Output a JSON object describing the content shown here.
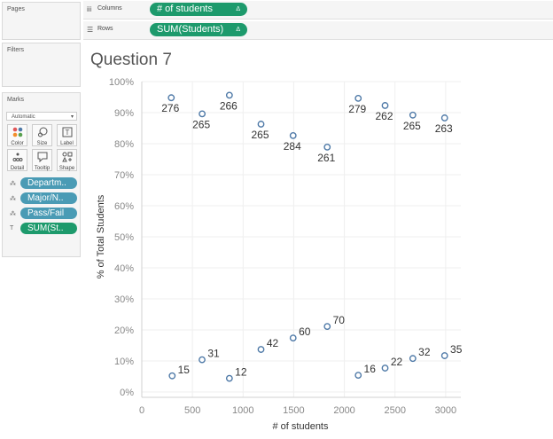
{
  "sidebar": {
    "pages_title": "Pages",
    "filters_title": "Filters",
    "marks_title": "Marks",
    "mark_type": "Automatic",
    "buttons": [
      {
        "label": "Color",
        "icon": "color-icon"
      },
      {
        "label": "Size",
        "icon": "size-icon"
      },
      {
        "label": "Label",
        "icon": "label-icon"
      },
      {
        "label": "Detail",
        "icon": "detail-icon"
      },
      {
        "label": "Tooltip",
        "icon": "tooltip-icon"
      },
      {
        "label": "Shape",
        "icon": "shape-icon"
      }
    ],
    "mark_pills": [
      {
        "label": "Departm..",
        "color": "#4a9bb5",
        "icon": "detail-icon"
      },
      {
        "label": "Major/N..",
        "color": "#4a9bb5",
        "icon": "detail-icon"
      },
      {
        "label": "Pass/Fail",
        "color": "#4a9bb5",
        "icon": "detail-icon"
      },
      {
        "label": "SUM(St..",
        "color": "#1d9a6c",
        "icon": "label-icon"
      }
    ]
  },
  "shelves": {
    "columns_label": "Columns",
    "columns_pill": "# of students",
    "rows_label": "Rows",
    "rows_pill": "SUM(Students)",
    "delta": "Δ"
  },
  "sheet": {
    "title": "Question 7"
  },
  "chart_data": {
    "type": "scatter",
    "xlabel": "# of students",
    "ylabel": "% of Total Students",
    "xlim": [
      0,
      3150
    ],
    "ylim": [
      0,
      100
    ],
    "x_ticks": [
      0,
      500,
      1000,
      1500,
      2000,
      2500,
      3000
    ],
    "y_ticks": [
      0,
      10,
      20,
      30,
      40,
      50,
      60,
      70,
      80,
      90,
      100
    ],
    "y_tick_labels": [
      "0%",
      "10%",
      "20%",
      "30%",
      "40%",
      "50%",
      "60%",
      "70%",
      "80%",
      "90%",
      "100%"
    ],
    "x_tick_labels": [
      "0",
      "500",
      "1000",
      "1500",
      "2000",
      "2500",
      "3000"
    ],
    "grid": true,
    "points": [
      {
        "x": 291,
        "y": 94.8,
        "label": "276"
      },
      {
        "x": 300,
        "y": 5.2,
        "label": "15"
      },
      {
        "x": 596,
        "y": 89.6,
        "label": "265"
      },
      {
        "x": 595,
        "y": 10.4,
        "label": "31"
      },
      {
        "x": 865,
        "y": 95.6,
        "label": "266"
      },
      {
        "x": 865,
        "y": 4.4,
        "label": "12"
      },
      {
        "x": 1177,
        "y": 86.3,
        "label": "265"
      },
      {
        "x": 1177,
        "y": 13.7,
        "label": "42"
      },
      {
        "x": 1494,
        "y": 82.6,
        "label": "284"
      },
      {
        "x": 1494,
        "y": 17.4,
        "label": "60"
      },
      {
        "x": 1831,
        "y": 78.9,
        "label": "261"
      },
      {
        "x": 1831,
        "y": 21.1,
        "label": "70"
      },
      {
        "x": 2137,
        "y": 94.6,
        "label": "279"
      },
      {
        "x": 2137,
        "y": 5.4,
        "label": "16"
      },
      {
        "x": 2402,
        "y": 92.3,
        "label": "262"
      },
      {
        "x": 2402,
        "y": 7.7,
        "label": "22"
      },
      {
        "x": 2676,
        "y": 89.2,
        "label": "265"
      },
      {
        "x": 2676,
        "y": 10.8,
        "label": "32"
      },
      {
        "x": 2990,
        "y": 88.3,
        "label": "263"
      },
      {
        "x": 2990,
        "y": 11.7,
        "label": "35"
      }
    ],
    "marker_color": "#4e79a7"
  }
}
